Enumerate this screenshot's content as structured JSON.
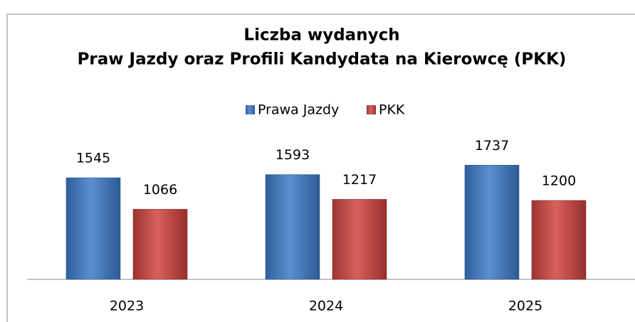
{
  "chart_data": {
    "type": "bar",
    "title": [
      "Liczba wydanych",
      "Praw Jazdy oraz Profili Kandydata na Kierowcę (PKK)"
    ],
    "categories": [
      "2023",
      "2024",
      "2025"
    ],
    "series": [
      {
        "name": "Prawa Jazdy",
        "color": "#4f81bd",
        "values": [
          1545,
          1593,
          1737
        ]
      },
      {
        "name": "PKK",
        "color": "#c0504d",
        "values": [
          1066,
          1217,
          1200
        ]
      }
    ],
    "ylim": [
      0,
      2000
    ],
    "legend": "top"
  }
}
